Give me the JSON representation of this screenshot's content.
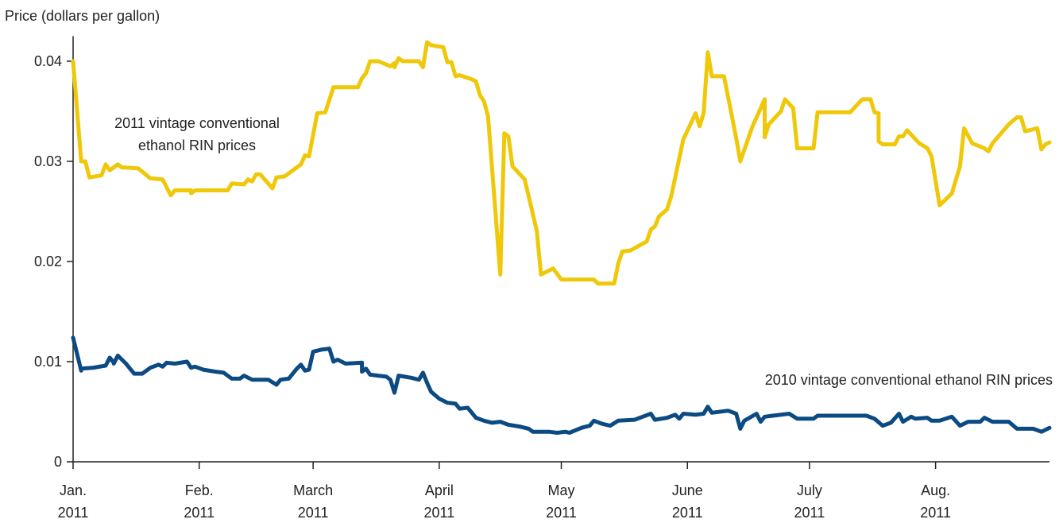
{
  "chart_data": {
    "type": "line",
    "y_label": "Price (dollars per gallon)",
    "xlim": [
      0,
      240
    ],
    "ylim": [
      0,
      0.0425
    ],
    "xticks": [
      {
        "value": 0,
        "label": "Jan.\n2011"
      },
      {
        "value": 31,
        "label": "Feb.\n2011"
      },
      {
        "value": 59,
        "label": "March\n2011"
      },
      {
        "value": 90,
        "label": "April\n2011"
      },
      {
        "value": 120,
        "label": "May\n2011"
      },
      {
        "value": 151,
        "label": "June\n2011"
      },
      {
        "value": 181,
        "label": "July\n2011"
      },
      {
        "value": 212,
        "label": "Aug.\n2011"
      }
    ],
    "yticks": [
      0,
      0.01,
      0.02,
      0.03,
      0.04
    ],
    "series": [
      {
        "name": "2011 vintage conventional\nethanol RIN prices",
        "color": "#efc80a",
        "x": [
          0,
          2,
          3,
          4,
          7,
          8,
          9,
          11,
          12,
          16,
          19,
          22,
          24,
          25,
          29,
          29,
          30,
          38,
          39,
          42,
          43,
          44,
          45,
          46,
          49,
          50,
          52,
          56,
          57,
          58,
          60,
          62,
          64,
          70,
          71,
          72,
          73,
          75,
          78,
          79,
          79,
          80,
          81,
          85,
          86,
          87,
          88,
          91,
          92,
          93,
          94,
          95,
          98,
          99,
          100,
          101,
          102,
          105,
          106,
          107,
          108,
          111,
          112,
          114,
          115,
          117,
          118,
          120,
          128,
          129,
          133,
          134,
          135,
          137,
          141,
          142,
          143,
          144,
          146,
          147,
          150,
          153,
          154,
          155,
          156,
          157,
          160,
          163,
          164,
          167,
          170,
          170,
          171,
          174,
          175,
          177,
          178,
          182,
          183,
          191,
          194,
          196,
          197,
          198,
          198,
          199,
          202,
          203,
          204,
          205,
          208,
          210,
          211,
          213,
          216,
          218,
          219,
          221,
          224,
          225,
          226,
          230,
          232,
          233,
          234,
          237,
          238,
          239,
          240
        ],
        "values": [
          0.04,
          0.03,
          0.03,
          0.0284,
          0.0286,
          0.0297,
          0.0291,
          0.0297,
          0.0294,
          0.0293,
          0.0283,
          0.0282,
          0.0266,
          0.0271,
          0.0271,
          0.0268,
          0.0271,
          0.0271,
          0.0278,
          0.0277,
          0.0282,
          0.028,
          0.0287,
          0.0287,
          0.0273,
          0.0284,
          0.0285,
          0.0297,
          0.0306,
          0.0305,
          0.0348,
          0.0349,
          0.0374,
          0.0374,
          0.0383,
          0.0388,
          0.04,
          0.04,
          0.0395,
          0.0398,
          0.0394,
          0.0403,
          0.04,
          0.04,
          0.0394,
          0.0419,
          0.0416,
          0.0414,
          0.0399,
          0.0399,
          0.0385,
          0.0386,
          0.0382,
          0.038,
          0.0366,
          0.036,
          0.0345,
          0.0187,
          0.0328,
          0.0325,
          0.0295,
          0.0282,
          0.0265,
          0.023,
          0.0187,
          0.0191,
          0.0193,
          0.0182,
          0.0182,
          0.0178,
          0.0178,
          0.0198,
          0.021,
          0.0211,
          0.022,
          0.0232,
          0.0235,
          0.0245,
          0.0252,
          0.0265,
          0.0322,
          0.0348,
          0.0335,
          0.0348,
          0.0409,
          0.0385,
          0.0385,
          0.0323,
          0.03,
          0.0335,
          0.0362,
          0.0324,
          0.0337,
          0.035,
          0.0362,
          0.0353,
          0.0313,
          0.0313,
          0.0349,
          0.0349,
          0.0362,
          0.0362,
          0.0349,
          0.0348,
          0.032,
          0.0317,
          0.0317,
          0.0325,
          0.0325,
          0.0331,
          0.0318,
          0.0313,
          0.0305,
          0.0256,
          0.0268,
          0.0295,
          0.0333,
          0.0318,
          0.0313,
          0.031,
          0.0318,
          0.0337,
          0.0344,
          0.0344,
          0.033,
          0.0333,
          0.0312,
          0.0317,
          0.0319
        ]
      },
      {
        "name": "2010 vintage conventional ethanol RIN prices",
        "color": "#0b4a82",
        "x": [
          0,
          2,
          2,
          5,
          8,
          9,
          10,
          10,
          11,
          13,
          15,
          17,
          19,
          21,
          22,
          23,
          25,
          28,
          29,
          30,
          32,
          35,
          37,
          39,
          41,
          42,
          44,
          48,
          50,
          51,
          53,
          55,
          56,
          57,
          58,
          59,
          61,
          63,
          64,
          65,
          67,
          71,
          71,
          72,
          73,
          77,
          78,
          79,
          80,
          83,
          85,
          86,
          87,
          88,
          90,
          92,
          94,
          95,
          97,
          99,
          101,
          103,
          105,
          107,
          110,
          112,
          113,
          117,
          119,
          121,
          122,
          125,
          127,
          128,
          130,
          132,
          134,
          138,
          140,
          142,
          143,
          146,
          148,
          149,
          150,
          153,
          155,
          156,
          157,
          161,
          163,
          164,
          165,
          168,
          169,
          170,
          172,
          176,
          178,
          182,
          183,
          195,
          197,
          199,
          201,
          203,
          204,
          206,
          207,
          210,
          211,
          213,
          216,
          218,
          220,
          223,
          224,
          226,
          230,
          232,
          236,
          238,
          240
        ],
        "values": [
          0.0124,
          0.0091,
          0.0093,
          0.0094,
          0.0096,
          0.0104,
          0.0099,
          0.0098,
          0.0106,
          0.0098,
          0.0088,
          0.0088,
          0.0094,
          0.0097,
          0.0095,
          0.0099,
          0.0098,
          0.01,
          0.0094,
          0.0095,
          0.0092,
          0.009,
          0.0089,
          0.0083,
          0.0083,
          0.0086,
          0.0082,
          0.0082,
          0.0077,
          0.0082,
          0.0083,
          0.0093,
          0.0097,
          0.0091,
          0.0092,
          0.011,
          0.0112,
          0.0113,
          0.01,
          0.0102,
          0.0098,
          0.0099,
          0.009,
          0.0093,
          0.0087,
          0.0085,
          0.0082,
          0.0069,
          0.0086,
          0.0084,
          0.0082,
          0.0089,
          0.0079,
          0.007,
          0.0063,
          0.0059,
          0.0058,
          0.0053,
          0.0054,
          0.0044,
          0.0041,
          0.0039,
          0.004,
          0.0037,
          0.0035,
          0.0033,
          0.003,
          0.003,
          0.0029,
          0.003,
          0.0029,
          0.0034,
          0.0036,
          0.0041,
          0.0038,
          0.0036,
          0.0041,
          0.0042,
          0.0045,
          0.0048,
          0.0042,
          0.0044,
          0.0047,
          0.0043,
          0.0048,
          0.0047,
          0.0048,
          0.0055,
          0.0049,
          0.0051,
          0.0048,
          0.0033,
          0.0041,
          0.0048,
          0.004,
          0.0045,
          0.0046,
          0.0048,
          0.0043,
          0.0043,
          0.0046,
          0.0046,
          0.0043,
          0.0036,
          0.0039,
          0.0048,
          0.004,
          0.0045,
          0.0043,
          0.0044,
          0.0041,
          0.0041,
          0.0045,
          0.0036,
          0.004,
          0.004,
          0.0044,
          0.004,
          0.004,
          0.0033,
          0.0033,
          0.003,
          0.0034
        ]
      }
    ]
  }
}
